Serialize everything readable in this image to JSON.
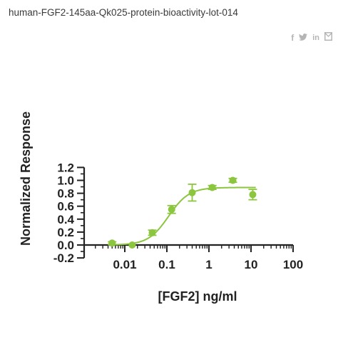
{
  "page": {
    "title": "human-FGF2-145aa-Qk025-protein-bioactivity-lot-014"
  },
  "share": {
    "icons": [
      "facebook-icon",
      "twitter-icon",
      "linkedin-icon",
      "email-icon"
    ],
    "icon_color": "#b5b5b5"
  },
  "chart_data": {
    "type": "scatter",
    "title": "",
    "xlabel": "[FGF2] ng/ml",
    "ylabel": "Normalized Response",
    "xscale": "log",
    "xlim": [
      0.001,
      100
    ],
    "ylim": [
      -0.2,
      1.2
    ],
    "x_ticks": [
      0.01,
      0.1,
      1,
      10,
      100
    ],
    "x_tick_labels": [
      "0.01",
      "0.1",
      "1",
      "10",
      "100"
    ],
    "y_ticks": [
      -0.2,
      0.0,
      0.2,
      0.4,
      0.6,
      0.8,
      1.0,
      1.2
    ],
    "y_tick_labels": [
      "-0.2",
      "0.0",
      "0.2",
      "0.4",
      "0.6",
      "0.8",
      "1.0",
      "1.2"
    ],
    "grid": false,
    "legend": "none",
    "series": [
      {
        "color": "#8cc63f",
        "points": [
          {
            "x": 0.005,
            "y": 0.03,
            "err": 0.02
          },
          {
            "x": 0.015,
            "y": 0.0,
            "err": 0.0
          },
          {
            "x": 0.045,
            "y": 0.19,
            "err": 0.04
          },
          {
            "x": 0.13,
            "y": 0.55,
            "err": 0.06
          },
          {
            "x": 0.4,
            "y": 0.81,
            "err": 0.13
          },
          {
            "x": 1.2,
            "y": 0.89,
            "err": 0.03
          },
          {
            "x": 3.7,
            "y": 1.0,
            "err": 0.03
          },
          {
            "x": 11,
            "y": 0.78,
            "err": 0.08
          }
        ],
        "fit": {
          "model": "4PL",
          "bottom": 0.0,
          "top": 0.89,
          "ec50": 0.11,
          "hill": 1.8
        }
      }
    ]
  }
}
